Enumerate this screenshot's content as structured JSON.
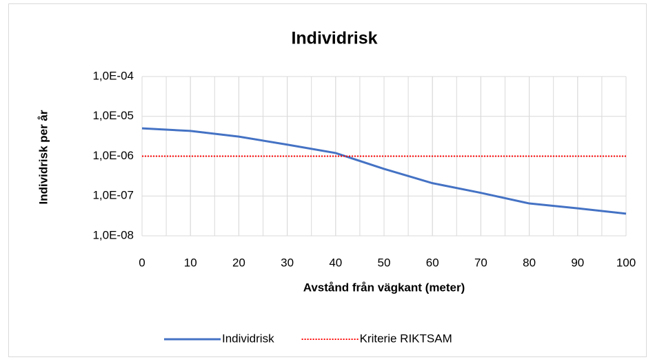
{
  "chart_data": {
    "type": "line",
    "title": "Individrisk",
    "x_label": "Avstånd från vägkant (meter)",
    "y_label": "Individrisk per år",
    "x": [
      0,
      10,
      20,
      30,
      40,
      50,
      60,
      70,
      80,
      90,
      100
    ],
    "series": [
      {
        "name": "Individrisk",
        "color": "#4472c4",
        "style": "solid",
        "values": [
          5e-06,
          4.3e-06,
          3.1e-06,
          1.95e-06,
          1.2e-06,
          4.8e-07,
          2.1e-07,
          1.2e-07,
          6.5e-08,
          4.9e-08,
          3.6e-08
        ]
      },
      {
        "name": "Kriterie RIKTSAM",
        "color": "#ff0000",
        "style": "dotted",
        "values": [
          1e-06,
          1e-06,
          1e-06,
          1e-06,
          1e-06,
          1e-06,
          1e-06,
          1e-06,
          1e-06,
          1e-06,
          1e-06
        ]
      }
    ],
    "xlim": [
      0,
      100
    ],
    "xticks": [
      0,
      10,
      20,
      30,
      40,
      50,
      60,
      70,
      80,
      90,
      100
    ],
    "x_minor_step": 5,
    "ylim": [
      1e-08,
      0.0001
    ],
    "y_log": true,
    "yticks": [
      {
        "value": 1e-08,
        "label": "1,0E-08"
      },
      {
        "value": 1e-07,
        "label": "1,0E-07"
      },
      {
        "value": 1e-06,
        "label": "1,0E-06"
      },
      {
        "value": 1e-05,
        "label": "1,0E-05"
      },
      {
        "value": 0.0001,
        "label": "1,0E-04"
      }
    ],
    "grid": true,
    "legend": "bottom"
  }
}
